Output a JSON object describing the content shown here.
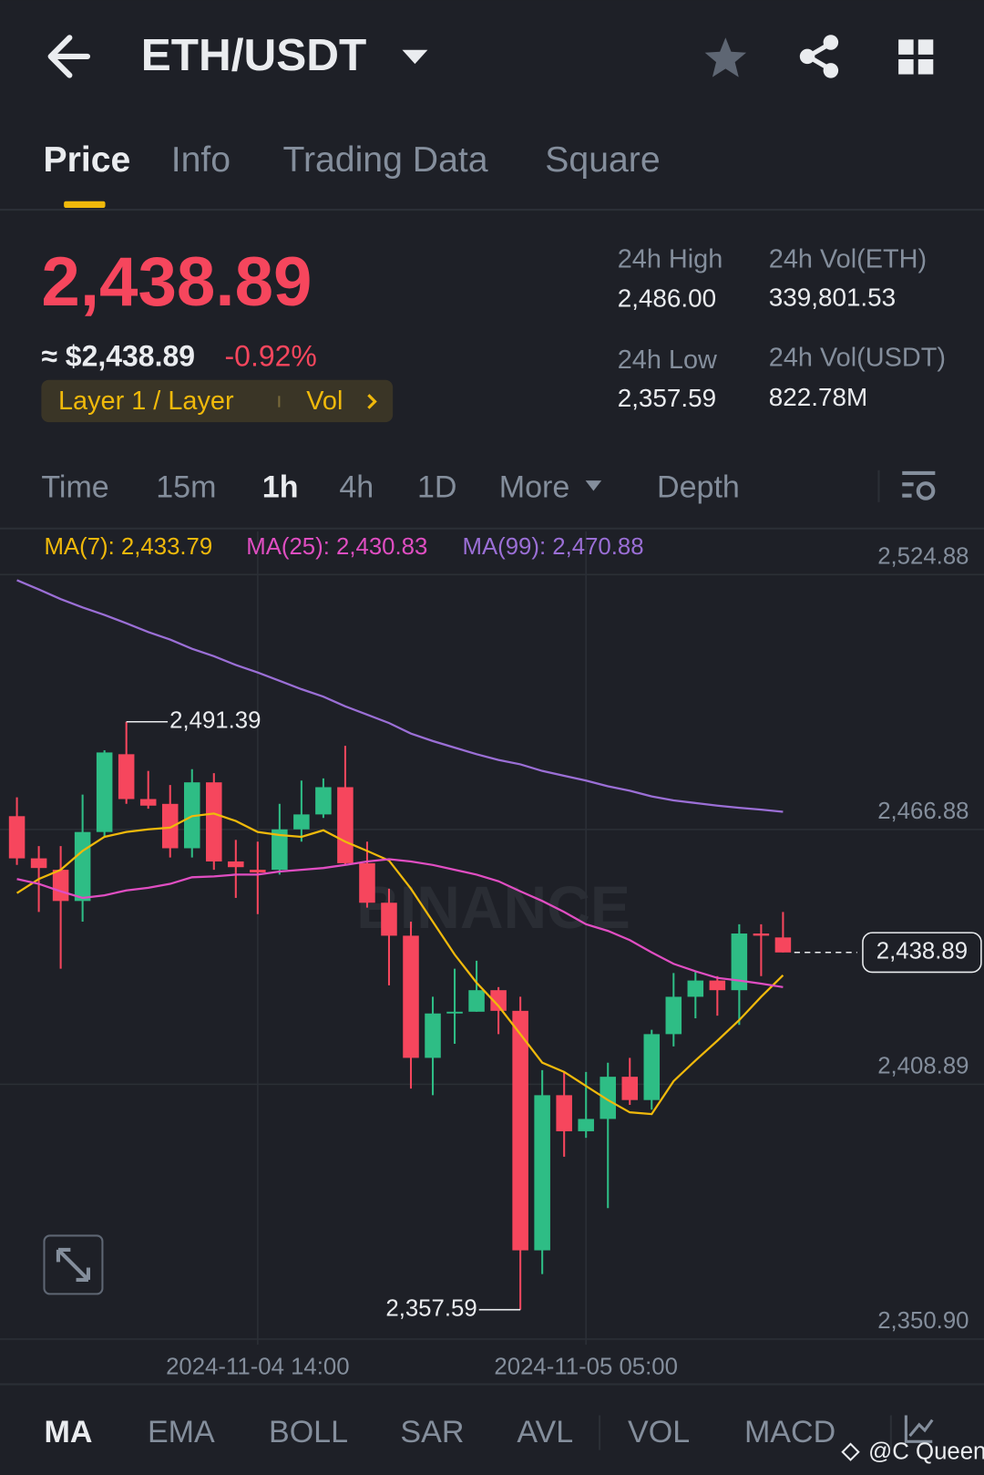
{
  "header": {
    "pair": "ETH/USDT"
  },
  "tabs": [
    "Price",
    "Info",
    "Trading Data",
    "Square"
  ],
  "ticker": {
    "price": "2,438.89",
    "usd_price": "≈ $2,438.89",
    "change": "-0.92%",
    "tag": "Layer 1 / Layer",
    "tag_link": "Vol",
    "stats": [
      {
        "label": "24h High",
        "value": "2,486.00"
      },
      {
        "label": "24h Vol(ETH)",
        "value": "339,801.53"
      },
      {
        "label": "24h Low",
        "value": "2,357.59"
      },
      {
        "label": "24h Vol(USDT)",
        "value": "822.78M"
      }
    ]
  },
  "intervals": [
    "Time",
    "15m",
    "1h",
    "4h",
    "1D",
    "More",
    "Depth"
  ],
  "chart": {
    "type": "candlestick",
    "up_color": "#2ebd85",
    "down_color": "#f6465d",
    "grid": true,
    "watermark": "BINANCE",
    "categories": [
      null,
      null,
      null,
      null,
      null,
      null,
      null,
      null,
      null,
      null,
      null,
      "2024-11-04 14:00",
      null,
      null,
      null,
      null,
      null,
      null,
      null,
      null,
      null,
      null,
      null,
      null,
      null,
      null,
      "2024-11-05 05:00",
      null,
      null,
      null,
      null,
      null,
      null,
      null,
      null,
      null
    ],
    "open": [
      2469.9,
      2460.3,
      2457.7,
      2450.6,
      2466.3,
      2484.0,
      2473.8,
      2472.7,
      2462.6,
      2477.6,
      2459.6,
      2457.7,
      2457.7,
      2466.9,
      2470.3,
      2476.5,
      2459.2,
      2450.2,
      2442.7,
      2414.9,
      2425.0,
      2425.4,
      2430.3,
      2425.6,
      2371.1,
      2406.4,
      2398.2,
      2401.0,
      2410.6,
      2405.3,
      2420.3,
      2428.8,
      2432.5,
      2430.3,
      2443.2,
      2442.3
    ],
    "high": [
      2474.2,
      2463.1,
      2463.1,
      2474.8,
      2484.9,
      2491.39,
      2480.2,
      2477.0,
      2480.6,
      2479.7,
      2464.5,
      2464.1,
      2472.7,
      2478.0,
      2478.5,
      2485.9,
      2464.1,
      2453.4,
      2445.9,
      2428.8,
      2435.2,
      2437.0,
      2431.0,
      2428.8,
      2412.1,
      2411.7,
      2411.7,
      2413.8,
      2414.9,
      2421.3,
      2434.2,
      2434.6,
      2433.5,
      2445.3,
      2445.3,
      2448.1
    ],
    "low": [
      2458.8,
      2448.1,
      2435.2,
      2445.9,
      2465.2,
      2472.7,
      2471.6,
      2460.5,
      2460.5,
      2457.7,
      2451.3,
      2447.6,
      2456.6,
      2464.1,
      2469.5,
      2458.8,
      2449.1,
      2431.4,
      2407.9,
      2406.4,
      2418.1,
      2425.4,
      2420.3,
      2357.59,
      2365.7,
      2392.4,
      2396.7,
      2380.7,
      2404.2,
      2403.1,
      2417.5,
      2423.9,
      2424.5,
      2422.4,
      2433.5,
      2438.89
    ],
    "close": [
      2460.3,
      2458.1,
      2450.6,
      2466.3,
      2484.4,
      2473.8,
      2472.3,
      2462.6,
      2477.6,
      2459.6,
      2458.3,
      2457.1,
      2466.9,
      2470.3,
      2476.5,
      2459.2,
      2450.2,
      2442.7,
      2414.9,
      2425.0,
      2425.4,
      2430.3,
      2425.6,
      2371.1,
      2406.4,
      2398.2,
      2401.0,
      2410.6,
      2405.3,
      2420.3,
      2428.8,
      2432.5,
      2430.3,
      2443.2,
      2442.7,
      2438.89
    ],
    "lines": [
      {
        "label": "MA(7): 2,433.79",
        "color": "#f0b90b",
        "values": [
          2452.4,
          2455.6,
          2457.7,
          2462.0,
          2465.2,
          2466.3,
          2466.9,
          2467.3,
          2469.9,
          2470.5,
          2468.8,
          2466.3,
          2465.6,
          2465.2,
          2466.7,
          2464.1,
          2462.0,
          2459.8,
          2453.4,
          2445.9,
          2438.4,
          2432.0,
          2426.7,
          2420.3,
          2413.8,
          2411.7,
          2408.5,
          2405.3,
          2402.5,
          2402.1,
          2409.6,
          2414.3,
          2418.8,
          2423.5,
          2428.8,
          2433.7
        ]
      },
      {
        "label": "MA(25): 2,430.83",
        "color": "#e04ec2",
        "values": [
          2455.6,
          2454.5,
          2452.8,
          2451.3,
          2451.9,
          2453.0,
          2453.6,
          2454.5,
          2456.0,
          2456.2,
          2456.6,
          2456.6,
          2457.3,
          2457.7,
          2458.1,
          2458.8,
          2459.6,
          2460.1,
          2459.6,
          2458.8,
          2457.7,
          2456.6,
          2455.1,
          2452.8,
          2450.6,
          2448.1,
          2445.3,
          2443.8,
          2441.7,
          2438.9,
          2436.3,
          2434.6,
          2433.1,
          2432.5,
          2431.8,
          2431.0
        ]
      },
      {
        "label": "MA(99): 2,470.88",
        "color": "#9b6fd6",
        "values": [
          2523.6,
          2521.5,
          2519.3,
          2517.4,
          2515.7,
          2513.8,
          2511.8,
          2510.1,
          2508.0,
          2506.3,
          2504.3,
          2502.6,
          2500.7,
          2498.8,
          2497.1,
          2494.9,
          2493.0,
          2491.1,
          2488.7,
          2487.0,
          2485.5,
          2484.0,
          2482.7,
          2481.7,
          2480.2,
          2479.1,
          2478.0,
          2476.7,
          2475.7,
          2474.4,
          2473.5,
          2472.9,
          2472.3,
          2471.8,
          2471.4,
          2470.9
        ]
      }
    ],
    "ylim": [
      2350.9,
      2524.88
    ],
    "yticks": [
      {
        "value": 2524.88,
        "label": "2,524.88"
      },
      {
        "value": 2466.88,
        "label": "2,466.88"
      },
      {
        "value": 2408.89,
        "label": "2,408.89"
      },
      {
        "value": 2350.9,
        "label": "2,350.90"
      }
    ],
    "high_label": {
      "value": 2491.39,
      "label": "2,491.39"
    },
    "low_label": {
      "value": 2357.59,
      "label": "2,357.59"
    },
    "last_price": {
      "value": 2438.89,
      "label": "2,438.89"
    }
  },
  "indicator_tabs": [
    "MA",
    "EMA",
    "BOLL",
    "SAR",
    "AVL",
    "VOL",
    "MACD"
  ],
  "watermark": "@C Queen"
}
